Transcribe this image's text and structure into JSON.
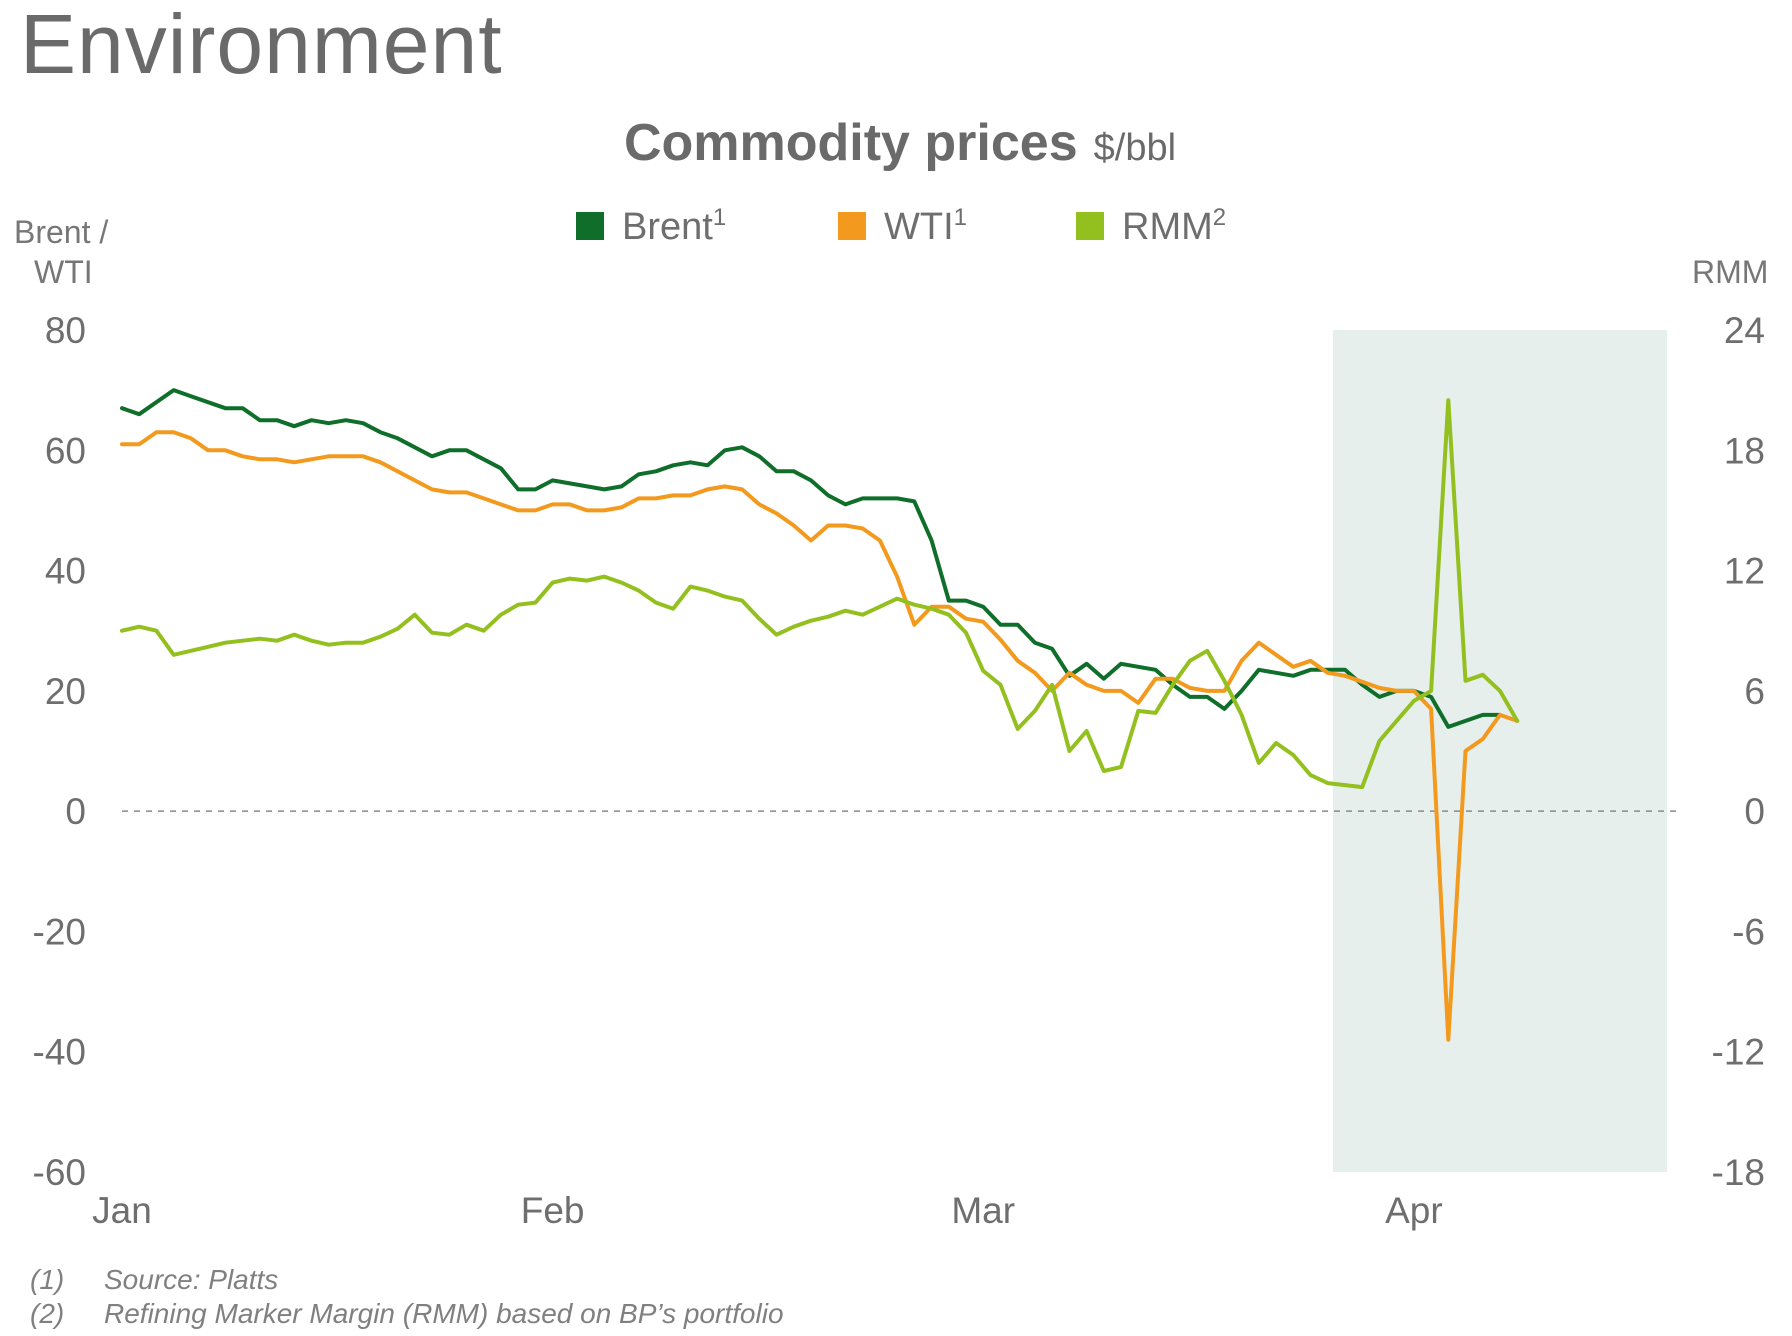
{
  "page": {
    "heading": "Environment"
  },
  "chart_data": {
    "type": "line",
    "title": "Commodity prices",
    "title_unit": "$/bbl",
    "y_left_label": [
      "Brent /",
      "WTI"
    ],
    "y_right_label": "RMM",
    "y_left_range": [
      -60,
      80
    ],
    "y_right_range": [
      -18,
      24
    ],
    "y_left_ticks": [
      "80",
      "60",
      "40",
      "20",
      "0",
      "-20",
      "-40",
      "-60"
    ],
    "y_right_ticks": [
      "24",
      "18",
      "12",
      "6",
      "0",
      "-6",
      "-12",
      "-18"
    ],
    "x_range": [
      0,
      89
    ],
    "x_ticks": [
      {
        "label": "Jan",
        "x": 0
      },
      {
        "label": "Feb",
        "x": 25
      },
      {
        "label": "Mar",
        "x": 50
      },
      {
        "label": "Apr",
        "x": 75
      }
    ],
    "zero_line": {
      "style": "dashed"
    },
    "highlight_region": {
      "from": 70.3,
      "to": 89.7,
      "color": "#e6efec"
    },
    "legend": {
      "placement": "top-center"
    },
    "series": [
      {
        "name": "Brent",
        "name_sup": "1",
        "axis": "left",
        "color": "#0f6e2a",
        "points": [
          [
            0,
            67
          ],
          [
            1,
            66
          ],
          [
            3,
            70
          ],
          [
            4,
            69
          ],
          [
            6,
            67
          ],
          [
            7,
            67
          ],
          [
            8,
            65
          ],
          [
            9,
            65
          ],
          [
            10,
            64
          ],
          [
            11,
            65
          ],
          [
            12,
            64.5
          ],
          [
            13,
            65
          ],
          [
            14,
            64.5
          ],
          [
            15,
            63
          ],
          [
            16,
            62
          ],
          [
            17,
            60.5
          ],
          [
            18,
            59
          ],
          [
            19,
            60
          ],
          [
            20,
            60
          ],
          [
            21,
            58.5
          ],
          [
            22,
            57
          ],
          [
            23,
            53.5
          ],
          [
            24,
            53.5
          ],
          [
            25,
            55
          ],
          [
            26,
            54.5
          ],
          [
            27,
            54
          ],
          [
            28,
            53.5
          ],
          [
            29,
            54
          ],
          [
            30,
            56
          ],
          [
            31,
            56.5
          ],
          [
            32,
            57.5
          ],
          [
            33,
            58
          ],
          [
            34,
            57.5
          ],
          [
            35,
            60
          ],
          [
            36,
            60.5
          ],
          [
            37,
            59
          ],
          [
            38,
            56.5
          ],
          [
            39,
            56.5
          ],
          [
            40,
            55
          ],
          [
            41,
            52.5
          ],
          [
            42,
            51
          ],
          [
            43,
            52
          ],
          [
            44,
            52
          ],
          [
            45,
            52
          ],
          [
            46,
            51.5
          ],
          [
            47,
            45
          ],
          [
            48,
            35
          ],
          [
            49,
            35
          ],
          [
            50,
            34
          ],
          [
            51,
            31
          ],
          [
            52,
            31
          ],
          [
            53,
            28
          ],
          [
            54,
            27
          ],
          [
            55,
            22.5
          ],
          [
            56,
            24.5
          ],
          [
            57,
            22
          ],
          [
            58,
            24.5
          ],
          [
            59,
            24
          ],
          [
            60,
            23.5
          ],
          [
            61,
            21
          ],
          [
            62,
            19
          ],
          [
            63,
            19
          ],
          [
            64,
            17
          ],
          [
            65,
            20
          ],
          [
            66,
            23.5
          ],
          [
            67,
            23
          ],
          [
            68,
            22.5
          ],
          [
            69,
            23.5
          ],
          [
            70,
            23.5
          ],
          [
            71,
            23.5
          ],
          [
            72,
            21
          ],
          [
            73,
            19
          ],
          [
            74,
            20
          ],
          [
            75,
            20
          ],
          [
            76,
            19
          ],
          [
            77,
            14
          ],
          [
            78,
            15
          ],
          [
            79,
            16
          ],
          [
            80,
            16
          ]
        ]
      },
      {
        "name": "WTI",
        "name_sup": "1",
        "axis": "left",
        "color": "#f39a1e",
        "points": [
          [
            0,
            61
          ],
          [
            1,
            61
          ],
          [
            2,
            63
          ],
          [
            3,
            63
          ],
          [
            4,
            62
          ],
          [
            5,
            60
          ],
          [
            6,
            60
          ],
          [
            7,
            59
          ],
          [
            8,
            58.5
          ],
          [
            9,
            58.5
          ],
          [
            10,
            58
          ],
          [
            11,
            58.5
          ],
          [
            12,
            59
          ],
          [
            13,
            59
          ],
          [
            14,
            59
          ],
          [
            15,
            58
          ],
          [
            16,
            56.5
          ],
          [
            17,
            55
          ],
          [
            18,
            53.5
          ],
          [
            19,
            53
          ],
          [
            20,
            53
          ],
          [
            21,
            52
          ],
          [
            22,
            51
          ],
          [
            23,
            50
          ],
          [
            24,
            50
          ],
          [
            25,
            51
          ],
          [
            26,
            51
          ],
          [
            27,
            50
          ],
          [
            28,
            50
          ],
          [
            29,
            50.5
          ],
          [
            30,
            52
          ],
          [
            31,
            52
          ],
          [
            32,
            52.5
          ],
          [
            33,
            52.5
          ],
          [
            34,
            53.5
          ],
          [
            35,
            54
          ],
          [
            36,
            53.5
          ],
          [
            37,
            51
          ],
          [
            38,
            49.5
          ],
          [
            39,
            47.5
          ],
          [
            40,
            45
          ],
          [
            41,
            47.5
          ],
          [
            42,
            47.5
          ],
          [
            43,
            47
          ],
          [
            44,
            45
          ],
          [
            45,
            39
          ],
          [
            46,
            31
          ],
          [
            47,
            34
          ],
          [
            48,
            34
          ],
          [
            49,
            32
          ],
          [
            50,
            31.5
          ],
          [
            51,
            28.5
          ],
          [
            52,
            25
          ],
          [
            53,
            23
          ],
          [
            54,
            20
          ],
          [
            55,
            23
          ],
          [
            56,
            21
          ],
          [
            57,
            20
          ],
          [
            58,
            20
          ],
          [
            59,
            18
          ],
          [
            60,
            22
          ],
          [
            61,
            22
          ],
          [
            62,
            20.5
          ],
          [
            63,
            20
          ],
          [
            64,
            20
          ],
          [
            65,
            25
          ],
          [
            66,
            28
          ],
          [
            67,
            26
          ],
          [
            68,
            24
          ],
          [
            69,
            25
          ],
          [
            70,
            23
          ],
          [
            71,
            22.5
          ],
          [
            72,
            21.5
          ],
          [
            73,
            20.5
          ],
          [
            74,
            20
          ],
          [
            75,
            20
          ],
          [
            76,
            17
          ],
          [
            77,
            -38
          ],
          [
            78,
            10
          ],
          [
            79,
            12
          ],
          [
            80,
            16
          ],
          [
            81,
            15
          ]
        ]
      },
      {
        "name": "RMM",
        "name_sup": "2",
        "axis": "right",
        "color": "#93c01f",
        "points": [
          [
            0,
            9
          ],
          [
            1,
            9.2
          ],
          [
            2,
            9
          ],
          [
            3,
            7.8
          ],
          [
            4,
            8
          ],
          [
            5,
            8.2
          ],
          [
            6,
            8.4
          ],
          [
            7,
            8.5
          ],
          [
            8,
            8.6
          ],
          [
            9,
            8.5
          ],
          [
            10,
            8.8
          ],
          [
            11,
            8.5
          ],
          [
            12,
            8.3
          ],
          [
            13,
            8.4
          ],
          [
            14,
            8.4
          ],
          [
            15,
            8.7
          ],
          [
            16,
            9.1
          ],
          [
            17,
            9.8
          ],
          [
            18,
            8.9
          ],
          [
            19,
            8.8
          ],
          [
            20,
            9.3
          ],
          [
            21,
            9
          ],
          [
            22,
            9.8
          ],
          [
            23,
            10.3
          ],
          [
            24,
            10.4
          ],
          [
            25,
            11.4
          ],
          [
            26,
            11.6
          ],
          [
            27,
            11.5
          ],
          [
            28,
            11.7
          ],
          [
            29,
            11.4
          ],
          [
            30,
            11
          ],
          [
            31,
            10.4
          ],
          [
            32,
            10.1
          ],
          [
            33,
            11.2
          ],
          [
            34,
            11
          ],
          [
            35,
            10.7
          ],
          [
            36,
            10.5
          ],
          [
            37,
            9.6
          ],
          [
            38,
            8.8
          ],
          [
            39,
            9.2
          ],
          [
            40,
            9.5
          ],
          [
            41,
            9.7
          ],
          [
            42,
            10
          ],
          [
            43,
            9.8
          ],
          [
            44,
            10.2
          ],
          [
            45,
            10.6
          ],
          [
            46,
            10.3
          ],
          [
            47,
            10.1
          ],
          [
            48,
            9.8
          ],
          [
            49,
            8.9
          ],
          [
            50,
            7
          ],
          [
            51,
            6.3
          ],
          [
            52,
            4.1
          ],
          [
            53,
            5
          ],
          [
            54,
            6.3
          ],
          [
            55,
            3
          ],
          [
            56,
            4
          ],
          [
            57,
            2
          ],
          [
            58,
            2.2
          ],
          [
            59,
            5
          ],
          [
            60,
            4.9
          ],
          [
            61,
            6.3
          ],
          [
            62,
            7.5
          ],
          [
            63,
            8
          ],
          [
            64,
            6.5
          ],
          [
            65,
            4.8
          ],
          [
            66,
            2.4
          ],
          [
            67,
            3.4
          ],
          [
            68,
            2.8
          ],
          [
            69,
            1.8
          ],
          [
            70,
            1.4
          ],
          [
            71,
            1.3
          ],
          [
            72,
            1.2
          ],
          [
            73,
            3.5
          ],
          [
            74,
            4.5
          ],
          [
            75,
            5.5
          ],
          [
            76,
            6
          ],
          [
            77,
            20.5
          ],
          [
            78,
            6.5
          ],
          [
            79,
            6.8
          ],
          [
            80,
            6
          ],
          [
            81,
            4.5
          ]
        ]
      }
    ]
  },
  "footnotes": [
    {
      "num": "(1)",
      "text": "Source: Platts"
    },
    {
      "num": "(2)",
      "text": "Refining Marker Margin (RMM) based on BP’s portfolio"
    }
  ]
}
